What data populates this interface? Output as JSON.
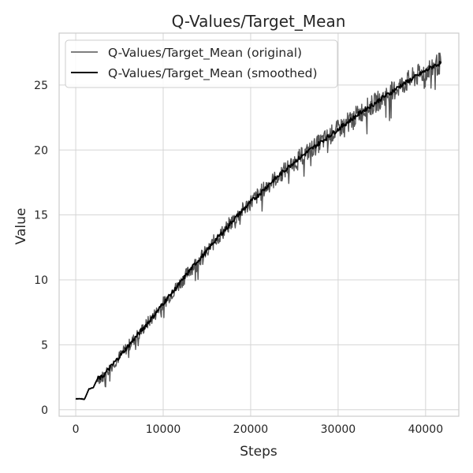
{
  "chart_data": {
    "type": "line",
    "title": "Q-Values/Target_Mean",
    "xlabel": "Steps",
    "ylabel": "Value",
    "xlim": [
      -1900,
      43800
    ],
    "ylim": [
      -0.5,
      29
    ],
    "x_ticks": [
      0,
      10000,
      20000,
      30000,
      40000
    ],
    "y_ticks": [
      0,
      5,
      10,
      15,
      20,
      25
    ],
    "grid": true,
    "legend": {
      "placement": "top-left",
      "entries": [
        "Q-Values/Target_Mean (original)",
        "Q-Values/Target_Mean (smoothed)"
      ]
    },
    "series": [
      {
        "name": "Q-Values/Target_Mean (original)",
        "color": "#555555",
        "noise_band": 0.8,
        "x": [
          0,
          500,
          1000,
          1500,
          2000,
          2500,
          3000,
          4000,
          5000,
          6000,
          7000,
          8000,
          9000,
          10000,
          11000,
          12000,
          13000,
          14000,
          15000,
          16000,
          17000,
          18000,
          19000,
          20000,
          21000,
          22000,
          23000,
          24000,
          25000,
          26000,
          27000,
          28000,
          29000,
          30000,
          31000,
          32000,
          33000,
          34000,
          35000,
          36000,
          37000,
          38000,
          39000,
          40000,
          41000,
          41800
        ],
        "y": [
          0.85,
          0.85,
          0.8,
          1.6,
          1.7,
          2.4,
          2.5,
          3.3,
          4.1,
          4.9,
          5.7,
          6.5,
          7.3,
          8.2,
          9.0,
          9.8,
          10.7,
          11.5,
          12.2,
          13.1,
          13.8,
          14.6,
          15.3,
          16.0,
          16.6,
          17.3,
          17.9,
          18.5,
          19.1,
          19.6,
          20.1,
          20.6,
          21.1,
          21.6,
          22.1,
          22.6,
          23.1,
          23.5,
          24.0,
          24.4,
          24.9,
          25.3,
          25.7,
          26.1,
          26.5,
          26.7
        ]
      },
      {
        "name": "Q-Values/Target_Mean (smoothed)",
        "color": "#000000",
        "x": [
          0,
          500,
          1000,
          1500,
          2000,
          2500,
          3000,
          4000,
          5000,
          6000,
          7000,
          8000,
          9000,
          10000,
          11000,
          12000,
          13000,
          14000,
          15000,
          16000,
          17000,
          18000,
          19000,
          20000,
          21000,
          22000,
          23000,
          24000,
          25000,
          26000,
          27000,
          28000,
          29000,
          30000,
          31000,
          32000,
          33000,
          34000,
          35000,
          36000,
          37000,
          38000,
          39000,
          40000,
          41000,
          41800
        ],
        "y": [
          0.85,
          0.85,
          0.8,
          1.6,
          1.7,
          2.4,
          2.5,
          3.3,
          4.1,
          4.9,
          5.7,
          6.5,
          7.3,
          8.2,
          9.0,
          9.8,
          10.7,
          11.5,
          12.2,
          13.1,
          13.8,
          14.6,
          15.3,
          16.0,
          16.6,
          17.3,
          17.9,
          18.5,
          19.1,
          19.6,
          20.1,
          20.6,
          21.1,
          21.6,
          22.1,
          22.6,
          23.1,
          23.5,
          24.0,
          24.4,
          24.9,
          25.3,
          25.7,
          26.1,
          26.5,
          26.7
        ]
      }
    ]
  }
}
